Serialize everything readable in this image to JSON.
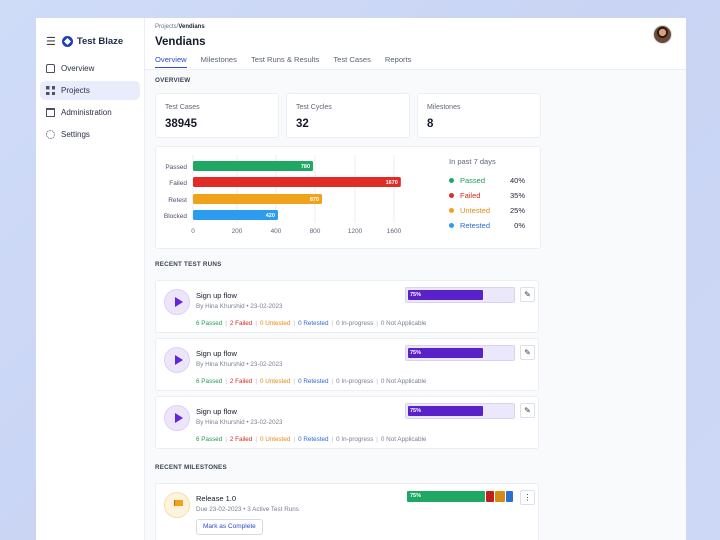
{
  "brand": {
    "name": "Test Blaze",
    "menu_icon": "hamburger-icon",
    "logo_icon": "compass-logo-icon"
  },
  "sidebar": {
    "items": [
      {
        "label": "Overview",
        "icon": "home-icon",
        "active": false
      },
      {
        "label": "Projects",
        "icon": "grid-icon",
        "active": true
      },
      {
        "label": "Administration",
        "icon": "bank-icon",
        "active": false
      },
      {
        "label": "Settings",
        "icon": "gear-icon",
        "active": false
      }
    ]
  },
  "header": {
    "breadcrumb_parent": "Projects/",
    "breadcrumb_current": "Vendians",
    "title": "Vendians",
    "tabs": [
      "Overview",
      "Milestones",
      "Test Runs & Results",
      "Test Cases",
      "Reports"
    ],
    "active_tab": "Overview"
  },
  "overview": {
    "section_label": "OVERVIEW",
    "stats": [
      {
        "label": "Test Cases",
        "value": "38945"
      },
      {
        "label": "Test Cycles",
        "value": "32"
      },
      {
        "label": "Milestones",
        "value": "8"
      }
    ]
  },
  "chart_data": {
    "type": "bar",
    "orientation": "horizontal",
    "categories": [
      "Passed",
      "Failed",
      "Retest",
      "Blocked"
    ],
    "values": [
      780,
      1670,
      870,
      420
    ],
    "colors": [
      "#1fa863",
      "#e02b26",
      "#f0a21b",
      "#2c9cf0"
    ],
    "x_ticks": [
      0,
      200,
      400,
      800,
      1200,
      1600
    ],
    "grid": true
  },
  "legend": {
    "title": "In past 7 days",
    "items": [
      {
        "label": "Passed",
        "pct": "40%",
        "color": "#1fa863"
      },
      {
        "label": "Failed",
        "pct": "35%",
        "color": "#e02b26"
      },
      {
        "label": "Untested",
        "pct": "25%",
        "color": "#f0a21b"
      },
      {
        "label": "Retested",
        "pct": "0%",
        "color": "#2c9cf0"
      }
    ]
  },
  "recent_runs": {
    "section_label": "RECENT TEST RUNS",
    "runs": [
      {
        "title": "Sign up flow",
        "meta": "By Hina Khurshid • 23-02-2023",
        "progress_label": "75%",
        "progress": 0.75,
        "passed": "6 Passed",
        "failed": "2 Failed",
        "untested": "0 Untested",
        "retested": "0 Retested",
        "in_progress": "0 In-progress",
        "na": "0 Not Applicable"
      },
      {
        "title": "Sign up flow",
        "meta": "By Hina Khurshid • 23-02-2023",
        "progress_label": "75%",
        "progress": 0.75,
        "passed": "6 Passed",
        "failed": "2 Failed",
        "untested": "0 Untested",
        "retested": "0 Retested",
        "in_progress": "0 In-progress",
        "na": "0 Not Applicable"
      },
      {
        "title": "Sign up flow",
        "meta": "By Hina Khurshid • 23-02-2023",
        "progress_label": "75%",
        "progress": 0.75,
        "passed": "6 Passed",
        "failed": "2 Failed",
        "untested": "0 Untested",
        "retested": "0 Retested",
        "in_progress": "0 In-progress",
        "na": "0 Not Applicable"
      }
    ]
  },
  "recent_milestones": {
    "section_label": "RECENT MILESTONES",
    "items": [
      {
        "title": "Release 1.0",
        "meta": "Due 23-02-2023 • 3 Active Test Runs",
        "progress_label": "75%",
        "button": "Mark as Complete",
        "segments": [
          {
            "share": 0.75,
            "color": "#1fa863"
          },
          {
            "share": 0.08,
            "color": "#c0201c"
          },
          {
            "share": 0.1,
            "color": "#d88b14"
          },
          {
            "share": 0.07,
            "color": "#2b6fd1"
          }
        ]
      }
    ]
  }
}
